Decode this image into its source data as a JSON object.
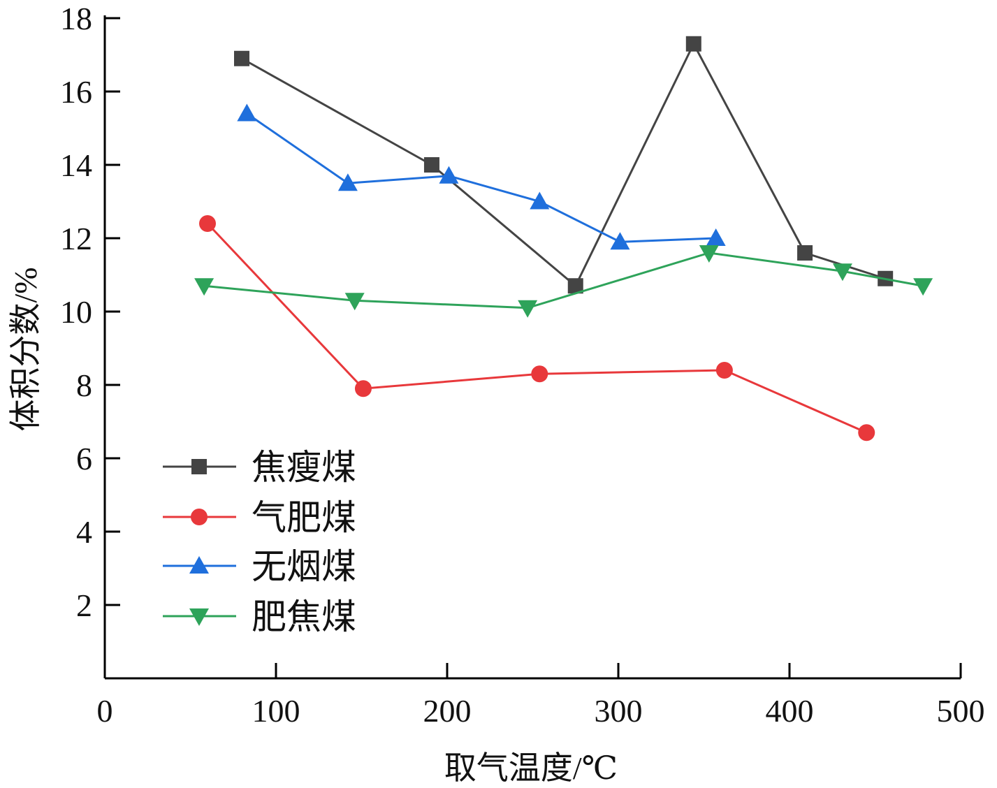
{
  "chart_data": {
    "type": "line",
    "title": "",
    "xlabel": "取气温度/℃",
    "ylabel": "体积分数/%",
    "xlim": [
      0,
      500
    ],
    "ylim": [
      0,
      18
    ],
    "xticks": [
      0,
      100,
      200,
      300,
      400,
      500
    ],
    "yticks": [
      2,
      4,
      6,
      8,
      10,
      12,
      14,
      16,
      18
    ],
    "grid": false,
    "legend_position": "bottom-left",
    "series": [
      {
        "name": "焦瘦煤",
        "color": "#444444",
        "marker": "square",
        "x": [
          80,
          191,
          275,
          344,
          409,
          456
        ],
        "y": [
          16.9,
          14.0,
          10.7,
          17.3,
          11.6,
          10.9
        ]
      },
      {
        "name": "气肥煤",
        "color": "#e8383b",
        "marker": "circle",
        "x": [
          60,
          151,
          254,
          362,
          445
        ],
        "y": [
          12.4,
          7.9,
          8.3,
          8.4,
          6.7
        ]
      },
      {
        "name": "无烟煤",
        "color": "#1f6fdc",
        "marker": "triangle-up",
        "x": [
          83,
          142,
          201,
          254,
          301,
          357
        ],
        "y": [
          15.4,
          13.5,
          13.7,
          13.0,
          11.9,
          12.0
        ]
      },
      {
        "name": "肥焦煤",
        "color": "#2ea35a",
        "marker": "triangle-down",
        "x": [
          58,
          146,
          247,
          353,
          431,
          478
        ],
        "y": [
          10.7,
          10.3,
          10.1,
          11.6,
          11.1,
          10.7
        ]
      }
    ]
  }
}
